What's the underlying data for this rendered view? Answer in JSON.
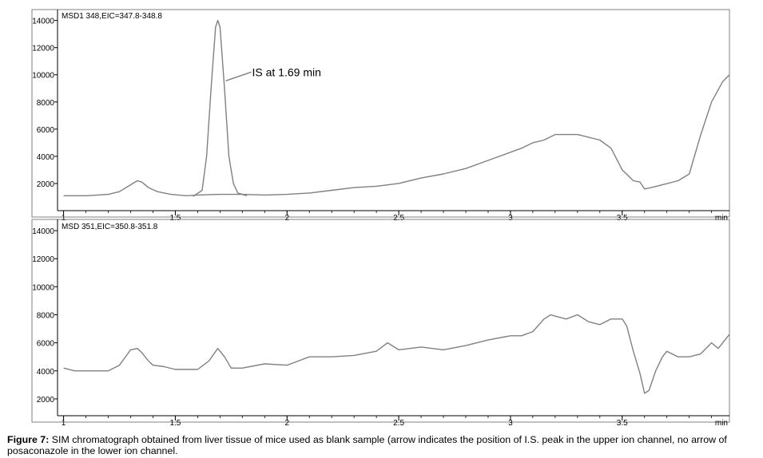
{
  "chart_data": [
    {
      "type": "line",
      "title": "MSD1 348,EIC=347.8-348.8",
      "xlabel": "min",
      "ylabel": "",
      "xlim": [
        0.98,
        3.98
      ],
      "ylim": [
        0,
        14800
      ],
      "x_ticks": [
        1,
        1.5,
        2,
        2.5,
        3,
        3.5
      ],
      "x_tick_labels": [
        "1",
        "1.5",
        "2",
        "2.5",
        "3",
        "3.5"
      ],
      "y_ticks": [
        2000,
        4000,
        6000,
        8000,
        10000,
        12000,
        14000
      ],
      "y_tick_labels": [
        "2000",
        "4000",
        "6000",
        "8000",
        "10000",
        "12000",
        "14000"
      ],
      "grid": false,
      "annotation": {
        "text": "IS at 1.69 min",
        "x": 1.84,
        "y": 10200
      },
      "series": [
        {
          "name": "",
          "x": [
            1.0,
            1.1,
            1.2,
            1.25,
            1.3,
            1.33,
            1.35,
            1.38,
            1.42,
            1.48,
            1.55,
            1.6,
            1.7,
            1.8,
            1.9,
            2.0,
            2.1,
            2.2,
            2.3,
            2.4,
            2.5,
            2.6,
            2.7,
            2.8,
            2.9,
            3.0,
            3.05,
            3.1,
            3.15,
            3.2,
            3.3,
            3.4,
            3.45,
            3.5,
            3.55,
            3.58,
            3.6,
            3.63,
            3.68,
            3.75,
            3.8,
            3.85,
            3.9,
            3.95,
            3.98
          ],
          "values": [
            1100,
            1100,
            1200,
            1400,
            1900,
            2200,
            2100,
            1700,
            1400,
            1200,
            1100,
            1150,
            1200,
            1200,
            1150,
            1200,
            1300,
            1500,
            1700,
            1800,
            2000,
            2400,
            2700,
            3100,
            3700,
            4300,
            4600,
            5000,
            5200,
            5600,
            5600,
            5200,
            4600,
            3000,
            2200,
            2100,
            1600,
            1700,
            1900,
            2200,
            2700,
            5500,
            8000,
            9500,
            10000
          ]
        },
        {
          "name": "",
          "x": [
            1.58,
            1.62,
            1.64,
            1.66,
            1.68,
            1.69,
            1.7,
            1.72,
            1.74,
            1.76,
            1.78,
            1.82
          ],
          "values": [
            1050,
            1500,
            4000,
            9000,
            13500,
            14000,
            13500,
            9000,
            4000,
            2000,
            1300,
            1100
          ]
        }
      ]
    },
    {
      "type": "line",
      "title": "MSD 351,EIC=350.8-351.8",
      "xlabel": "min",
      "ylabel": "",
      "xlim": [
        0.98,
        3.98
      ],
      "ylim": [
        800,
        14800
      ],
      "x_ticks": [
        1,
        1.5,
        2,
        2.5,
        3,
        3.5
      ],
      "x_tick_labels": [
        "1",
        "1.5",
        "2",
        "2.5",
        "3",
        "3.5"
      ],
      "y_ticks": [
        2000,
        4000,
        6000,
        8000,
        10000,
        12000,
        14000
      ],
      "y_tick_labels": [
        "2000",
        "4000",
        "6000",
        "8000",
        "10000",
        "12000",
        "14000"
      ],
      "grid": false,
      "series": [
        {
          "name": "",
          "x": [
            1.0,
            1.05,
            1.1,
            1.15,
            1.2,
            1.25,
            1.3,
            1.33,
            1.35,
            1.38,
            1.4,
            1.45,
            1.5,
            1.55,
            1.6,
            1.65,
            1.69,
            1.72,
            1.75,
            1.8,
            1.9,
            2.0,
            2.05,
            2.1,
            2.2,
            2.3,
            2.4,
            2.45,
            2.5,
            2.55,
            2.6,
            2.7,
            2.8,
            2.9,
            3.0,
            3.05,
            3.1,
            3.15,
            3.18,
            3.2,
            3.25,
            3.3,
            3.35,
            3.4,
            3.45,
            3.5,
            3.52,
            3.55,
            3.58,
            3.6,
            3.62,
            3.65,
            3.68,
            3.7,
            3.75,
            3.8,
            3.85,
            3.9,
            3.93,
            3.98
          ],
          "values": [
            4200,
            4000,
            4000,
            4000,
            4000,
            4400,
            5500,
            5600,
            5300,
            4700,
            4400,
            4300,
            4100,
            4100,
            4100,
            4700,
            5600,
            5000,
            4200,
            4200,
            4500,
            4400,
            4700,
            5000,
            5000,
            5100,
            5400,
            6000,
            5500,
            5600,
            5700,
            5500,
            5800,
            6200,
            6500,
            6500,
            6800,
            7700,
            8000,
            7900,
            7700,
            8000,
            7500,
            7300,
            7700,
            7700,
            7200,
            5400,
            3800,
            2400,
            2600,
            4000,
            5000,
            5400,
            5000,
            5000,
            5200,
            6000,
            5600,
            6600
          ]
        }
      ]
    }
  ],
  "caption": {
    "label": "Figure 7:",
    "text": " SIM chromatograph obtained from liver tissue of mice used as blank sample (arrow indicates the position of I.S. peak in the upper ion channel, no arrow of posaconazole in the lower ion channel."
  }
}
